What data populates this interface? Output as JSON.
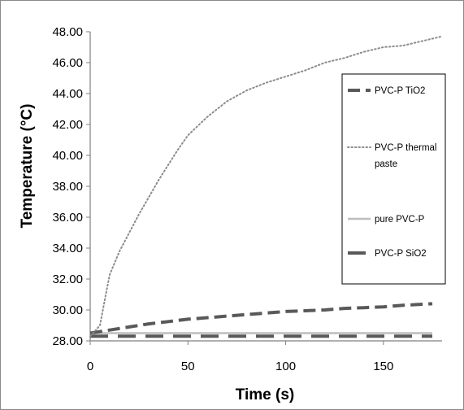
{
  "chart_data": {
    "type": "line",
    "title": "",
    "xlabel": "Time (s)",
    "ylabel": "Temperature (°C)",
    "xlim": [
      0,
      180
    ],
    "ylim": [
      28,
      48
    ],
    "x_ticks": [
      0,
      50,
      100,
      150
    ],
    "y_ticks": [
      "28.00",
      "30.00",
      "32.00",
      "34.00",
      "36.00",
      "38.00",
      "40.00",
      "42.00",
      "44.00",
      "46.00",
      "48.00"
    ],
    "grid": false,
    "legend_position": "right",
    "series": [
      {
        "name": "PVC-P TiO2",
        "style": "dashed",
        "color": "#595959",
        "x": [
          0,
          10,
          20,
          30,
          40,
          50,
          60,
          70,
          80,
          90,
          100,
          110,
          120,
          130,
          140,
          150,
          160,
          175
        ],
        "y": [
          28.5,
          28.7,
          28.9,
          29.1,
          29.25,
          29.4,
          29.5,
          29.6,
          29.7,
          29.8,
          29.9,
          29.95,
          30.0,
          30.1,
          30.15,
          30.2,
          30.3,
          30.4
        ]
      },
      {
        "name": "PVC-P thermal paste",
        "style": "dotted",
        "color": "#8c8c8c",
        "x": [
          0,
          5,
          8,
          10,
          15,
          20,
          25,
          30,
          35,
          40,
          45,
          50,
          60,
          70,
          80,
          90,
          100,
          110,
          120,
          130,
          140,
          150,
          160,
          170,
          180
        ],
        "y": [
          28.3,
          29.0,
          31.0,
          32.3,
          33.8,
          35.0,
          36.2,
          37.3,
          38.4,
          39.4,
          40.4,
          41.3,
          42.5,
          43.5,
          44.2,
          44.7,
          45.1,
          45.5,
          46.0,
          46.3,
          46.7,
          47.0,
          47.1,
          47.4,
          47.7
        ]
      },
      {
        "name": "pure PVC-P",
        "style": "solid",
        "color": "#bdbdbd",
        "x": [
          0,
          25,
          50,
          75,
          100,
          125,
          150,
          175
        ],
        "y": [
          28.5,
          28.5,
          28.5,
          28.5,
          28.5,
          28.5,
          28.5,
          28.5
        ]
      },
      {
        "name": "PVC-P SiO2",
        "style": "long-dash",
        "color": "#595959",
        "x": [
          0,
          175
        ],
        "y": [
          28.3,
          28.3
        ]
      }
    ]
  }
}
